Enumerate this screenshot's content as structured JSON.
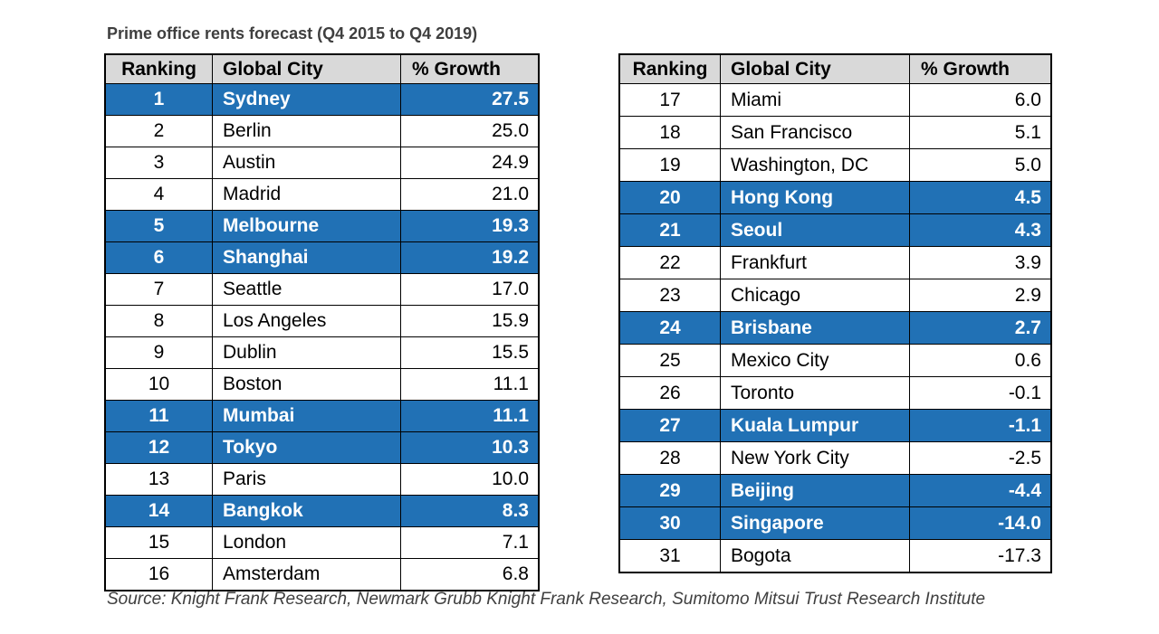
{
  "title": "Prime office rents forecast (Q4 2015 to Q4 2019)",
  "source": "Source: Knight Frank Research, Newmark Grubb Knight Frank Research, Sumitomo Mitsui Trust Research Institute",
  "colors": {
    "highlight_blue": "#2171b5",
    "header_bg": "#d9d9d9",
    "border": "#000000",
    "title_text": "#3f3f3f"
  },
  "columns": [
    "Ranking",
    "Global City",
    "% Growth"
  ],
  "tables": [
    {
      "name": "rankings-1-16",
      "rows": [
        {
          "ranking": "1",
          "city": "Sydney",
          "growth": "27.5",
          "highlight": true
        },
        {
          "ranking": "2",
          "city": "Berlin",
          "growth": "25.0",
          "highlight": false
        },
        {
          "ranking": "3",
          "city": "Austin",
          "growth": "24.9",
          "highlight": false
        },
        {
          "ranking": "4",
          "city": "Madrid",
          "growth": "21.0",
          "highlight": false
        },
        {
          "ranking": "5",
          "city": "Melbourne",
          "growth": "19.3",
          "highlight": true
        },
        {
          "ranking": "6",
          "city": "Shanghai",
          "growth": "19.2",
          "highlight": true
        },
        {
          "ranking": "7",
          "city": "Seattle",
          "growth": "17.0",
          "highlight": false
        },
        {
          "ranking": "8",
          "city": "Los Angeles",
          "growth": "15.9",
          "highlight": false
        },
        {
          "ranking": "9",
          "city": "Dublin",
          "growth": "15.5",
          "highlight": false
        },
        {
          "ranking": "10",
          "city": "Boston",
          "growth": "11.1",
          "highlight": false
        },
        {
          "ranking": "11",
          "city": "Mumbai",
          "growth": "11.1",
          "highlight": true
        },
        {
          "ranking": "12",
          "city": "Tokyo",
          "growth": "10.3",
          "highlight": true
        },
        {
          "ranking": "13",
          "city": "Paris",
          "growth": "10.0",
          "highlight": false
        },
        {
          "ranking": "14",
          "city": "Bangkok",
          "growth": "8.3",
          "highlight": true
        },
        {
          "ranking": "15",
          "city": "London",
          "growth": "7.1",
          "highlight": false
        },
        {
          "ranking": "16",
          "city": "Amsterdam",
          "growth": "6.8",
          "highlight": false
        }
      ]
    },
    {
      "name": "rankings-17-31",
      "rows": [
        {
          "ranking": "17",
          "city": "Miami",
          "growth": "6.0",
          "highlight": false
        },
        {
          "ranking": "18",
          "city": "San Francisco",
          "growth": "5.1",
          "highlight": false
        },
        {
          "ranking": "19",
          "city": "Washington, DC",
          "growth": "5.0",
          "highlight": false
        },
        {
          "ranking": "20",
          "city": "Hong Kong",
          "growth": "4.5",
          "highlight": true
        },
        {
          "ranking": "21",
          "city": "Seoul",
          "growth": "4.3",
          "highlight": true
        },
        {
          "ranking": "22",
          "city": "Frankfurt",
          "growth": "3.9",
          "highlight": false
        },
        {
          "ranking": "23",
          "city": "Chicago",
          "growth": "2.9",
          "highlight": false
        },
        {
          "ranking": "24",
          "city": "Brisbane",
          "growth": "2.7",
          "highlight": true
        },
        {
          "ranking": "25",
          "city": "Mexico City",
          "growth": "0.6",
          "highlight": false
        },
        {
          "ranking": "26",
          "city": "Toronto",
          "growth": "-0.1",
          "highlight": false
        },
        {
          "ranking": "27",
          "city": "Kuala Lumpur",
          "growth": "-1.1",
          "highlight": true
        },
        {
          "ranking": "28",
          "city": "New York City",
          "growth": "-2.5",
          "highlight": false
        },
        {
          "ranking": "29",
          "city": "Beijing",
          "growth": "-4.4",
          "highlight": true
        },
        {
          "ranking": "30",
          "city": "Singapore",
          "growth": "-14.0",
          "highlight": true
        },
        {
          "ranking": "31",
          "city": "Bogota",
          "growth": "-17.3",
          "highlight": false
        }
      ]
    }
  ]
}
